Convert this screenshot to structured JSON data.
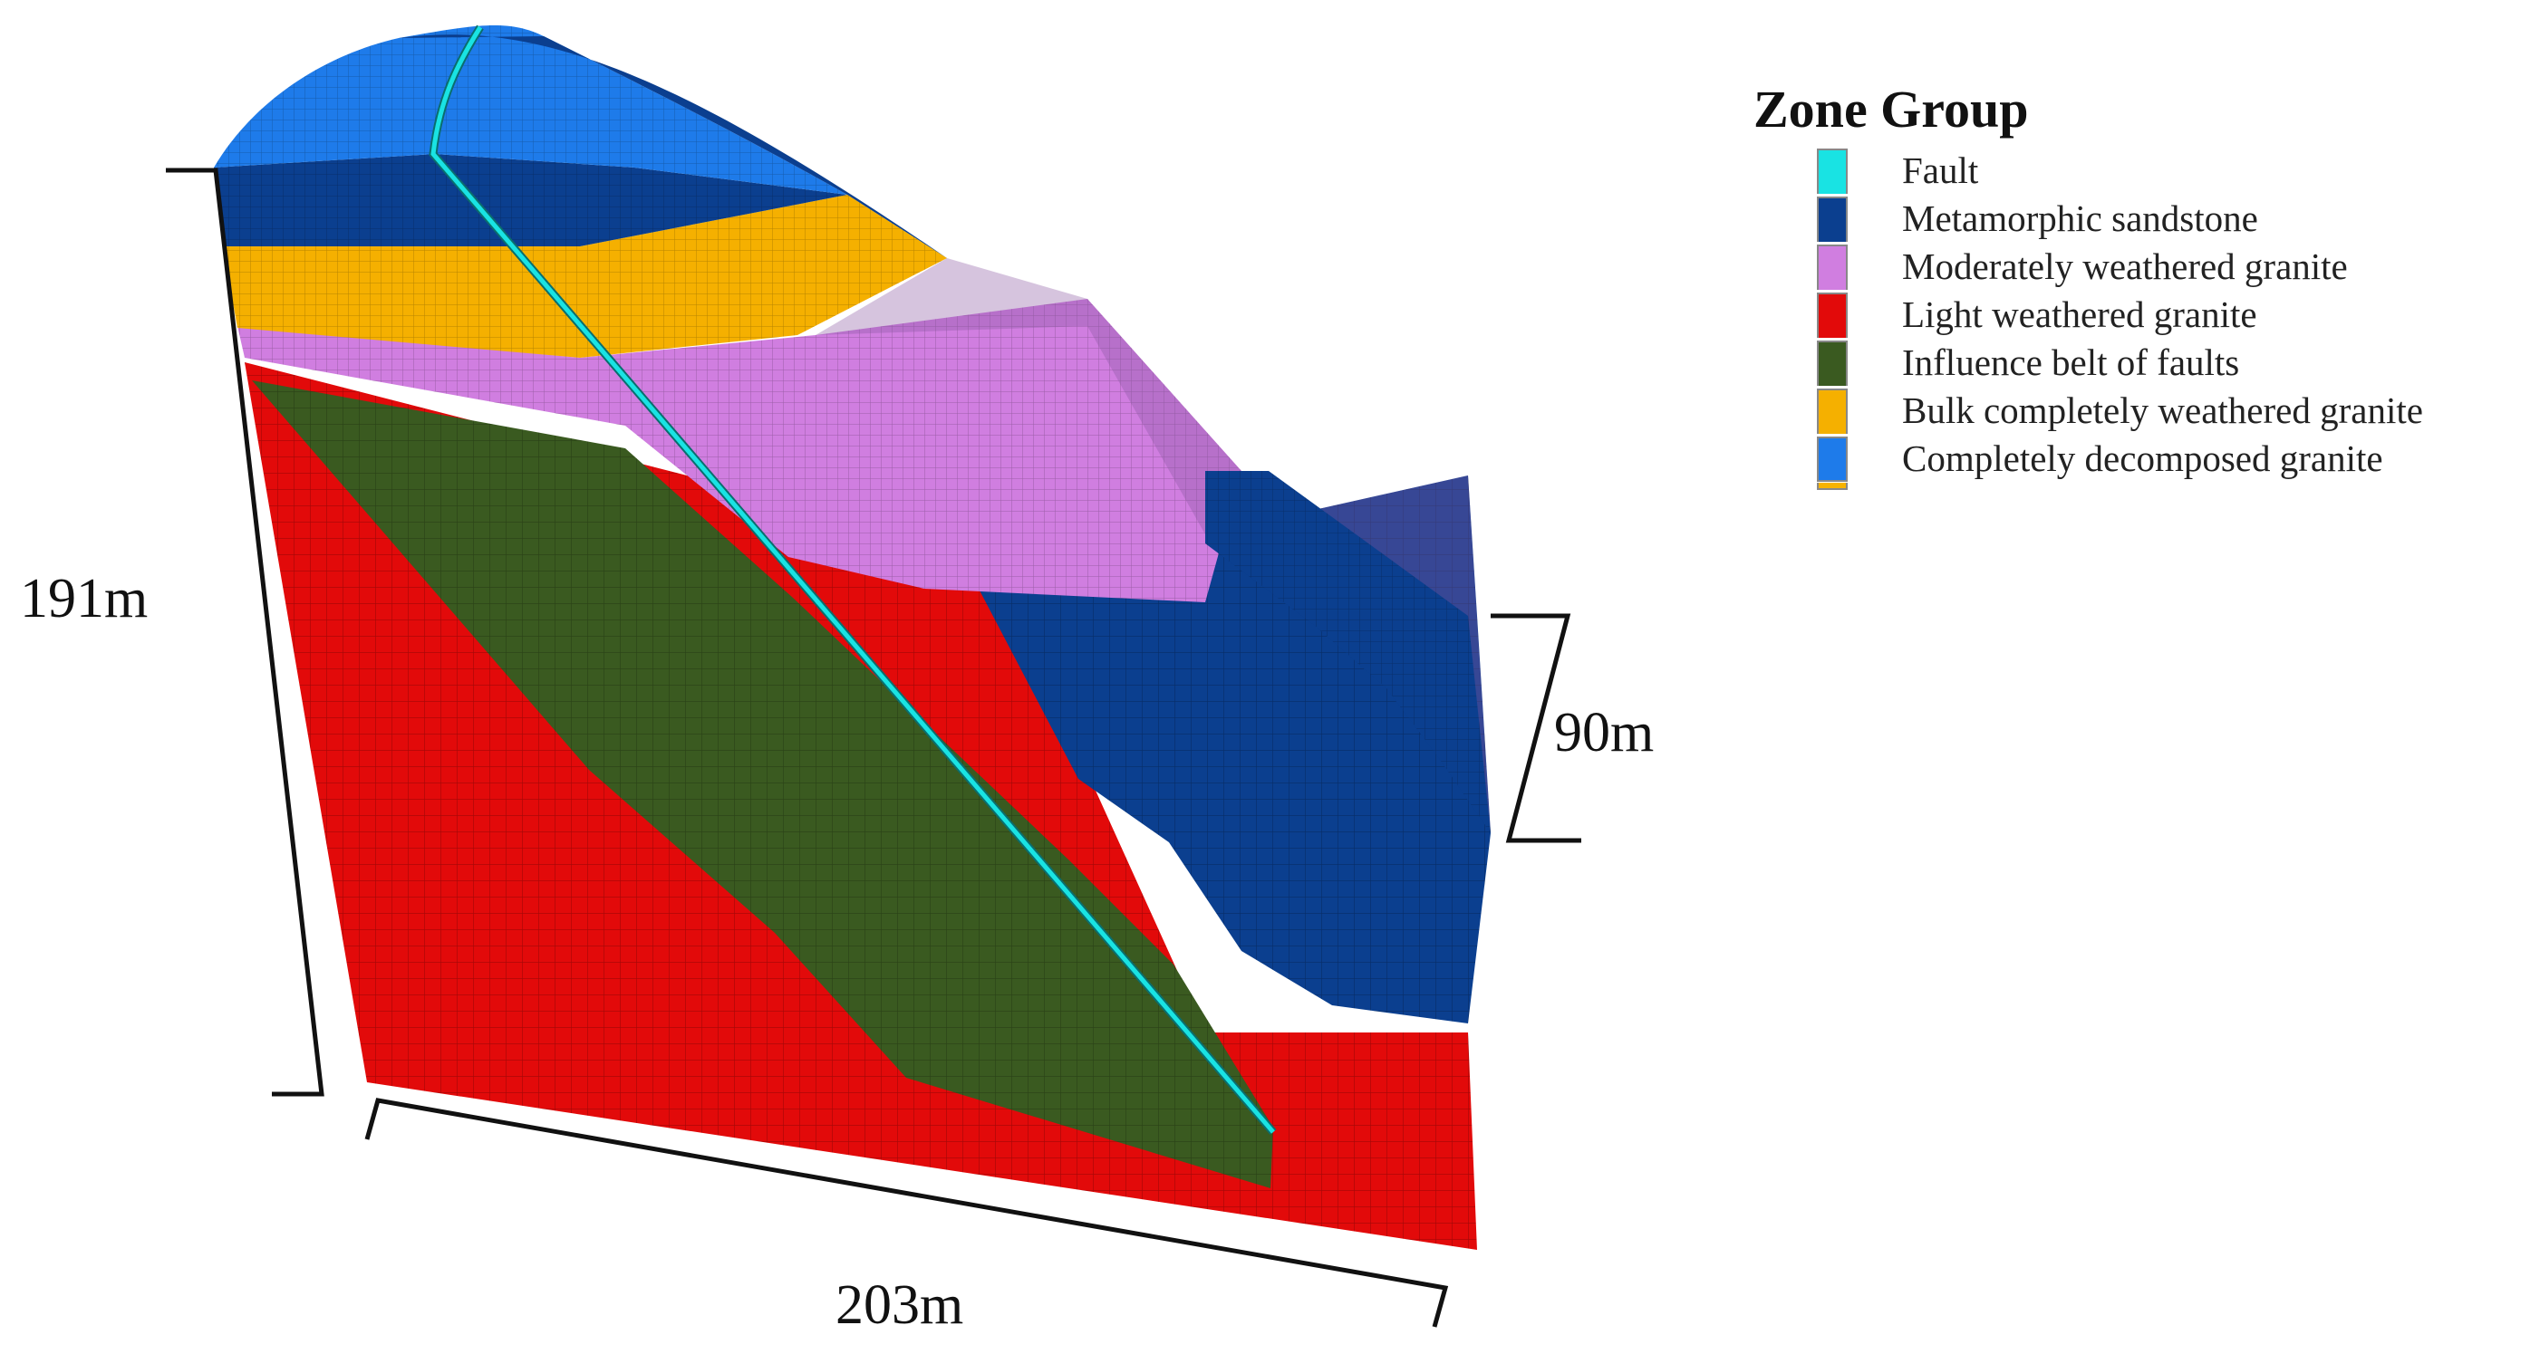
{
  "dimensions": {
    "height_left": "191m",
    "height_right": "90m",
    "width_bottom": "203m"
  },
  "legend": {
    "title": "Zone Group",
    "items": [
      {
        "label": "Fault",
        "color": "#19e3e3"
      },
      {
        "label": "Metamorphic sandstone",
        "color": "#0b3f8f"
      },
      {
        "label": "Moderately weathered granite",
        "color": "#d07ee0"
      },
      {
        "label": "Light weathered granite",
        "color": "#e20a0a"
      },
      {
        "label": "Influence belt of faults",
        "color": "#3a5a20"
      },
      {
        "label": "Bulk completely weathered granite",
        "color": "#f5b000"
      },
      {
        "label": "Completely decomposed granite",
        "color": "#1e7bea"
      }
    ]
  }
}
